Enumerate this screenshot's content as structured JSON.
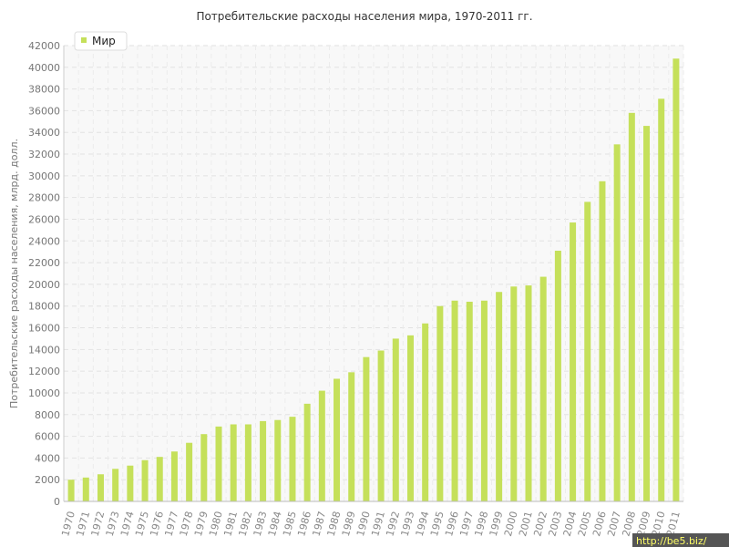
{
  "chart_data": {
    "type": "bar",
    "title": "Потребительские расходы населения мира, 1970-2011 гг.",
    "xlabel": "",
    "ylabel": "Потребительские расходы населения, млрд. долл.",
    "ylim": [
      0,
      42000
    ],
    "ytick_step": 2000,
    "grid": true,
    "legend_position": "top-left",
    "categories": [
      "1970",
      "1971",
      "1972",
      "1973",
      "1974",
      "1975",
      "1976",
      "1977",
      "1978",
      "1979",
      "1980",
      "1981",
      "1982",
      "1983",
      "1984",
      "1985",
      "1986",
      "1987",
      "1988",
      "1989",
      "1990",
      "1991",
      "1992",
      "1993",
      "1994",
      "1995",
      "1996",
      "1997",
      "1998",
      "1999",
      "2000",
      "2001",
      "2002",
      "2003",
      "2004",
      "2005",
      "2006",
      "2007",
      "2008",
      "2009",
      "2010",
      "2011"
    ],
    "series": [
      {
        "name": "Мир",
        "color": "#c5e05a",
        "values": [
          2000,
          2200,
          2500,
          3000,
          3300,
          3800,
          4100,
          4600,
          5400,
          6200,
          6900,
          7100,
          7100,
          7400,
          7500,
          7800,
          9000,
          10200,
          11300,
          11900,
          13300,
          13900,
          15000,
          15300,
          16400,
          18000,
          18500,
          18400,
          18500,
          19300,
          19800,
          19900,
          20700,
          23100,
          25700,
          27600,
          29500,
          32900,
          35800,
          34600,
          37100,
          40800
        ]
      }
    ]
  },
  "watermark": "http://be5.biz/"
}
